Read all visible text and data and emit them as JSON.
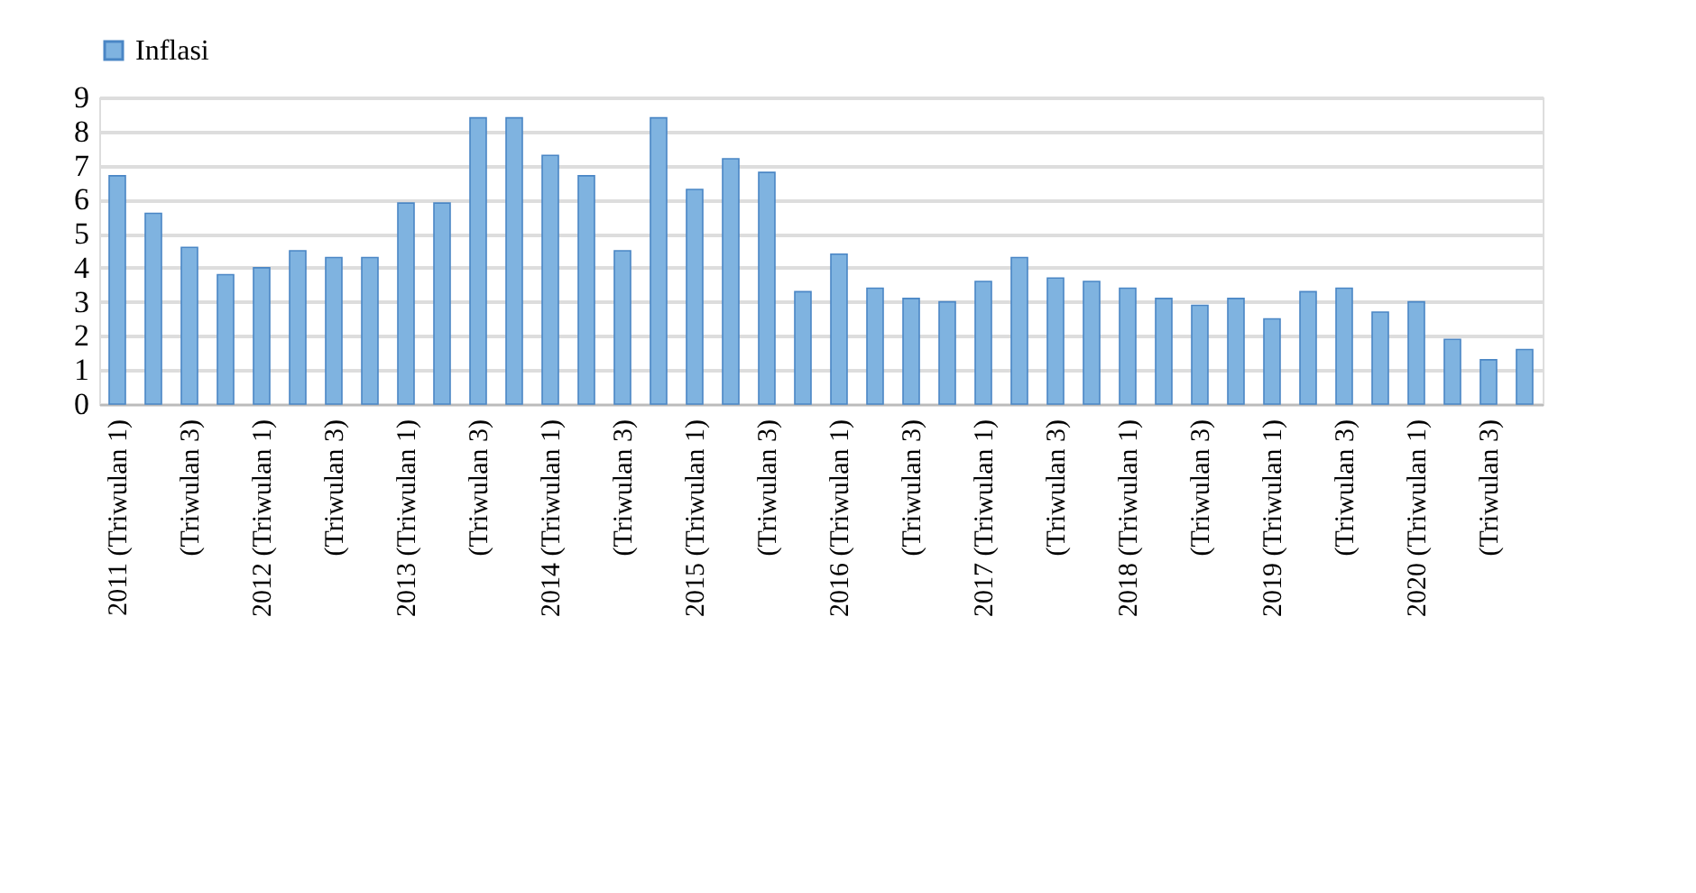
{
  "chart_data": {
    "type": "bar",
    "categories": [
      "2011 (Triwulan 1)",
      null,
      "(Triwulan 3)",
      null,
      "2012 (Triwulan 1)",
      null,
      "(Triwulan 3)",
      null,
      "2013 (Triwulan 1)",
      null,
      "(Triwulan 3)",
      null,
      "2014 (Triwulan 1)",
      null,
      "(Triwulan 3)",
      null,
      "2015 (Triwulan 1)",
      null,
      "(Triwulan 3)",
      null,
      "2016 (Triwulan 1)",
      null,
      "(Triwulan 3)",
      null,
      "2017 (Triwulan 1)",
      null,
      "(Triwulan 3)",
      null,
      "2018 (Triwulan 1)",
      null,
      "(Triwulan 3)",
      null,
      "2019 (Triwulan 1)",
      null,
      "(Triwulan 3)",
      null,
      "2020 (Triwulan 1)",
      null,
      "(Triwulan 3)",
      null
    ],
    "series": [
      {
        "name": "Inflasi",
        "color": "#7fb3e0",
        "values": [
          6.7,
          5.6,
          4.6,
          3.8,
          4.0,
          4.5,
          4.3,
          4.3,
          5.9,
          5.9,
          8.4,
          8.4,
          7.3,
          6.7,
          4.5,
          8.4,
          6.3,
          7.2,
          6.8,
          3.3,
          4.4,
          3.4,
          3.1,
          3.0,
          3.6,
          4.3,
          3.7,
          3.6,
          3.4,
          3.1,
          2.9,
          3.1,
          2.5,
          3.3,
          3.4,
          2.7,
          3.0,
          1.9,
          1.3,
          1.6
        ]
      }
    ],
    "ylim": [
      0,
      9
    ],
    "yticks": [
      0,
      1,
      2,
      3,
      4,
      5,
      6,
      7,
      8,
      9
    ],
    "grid": "y",
    "legend": "top"
  }
}
